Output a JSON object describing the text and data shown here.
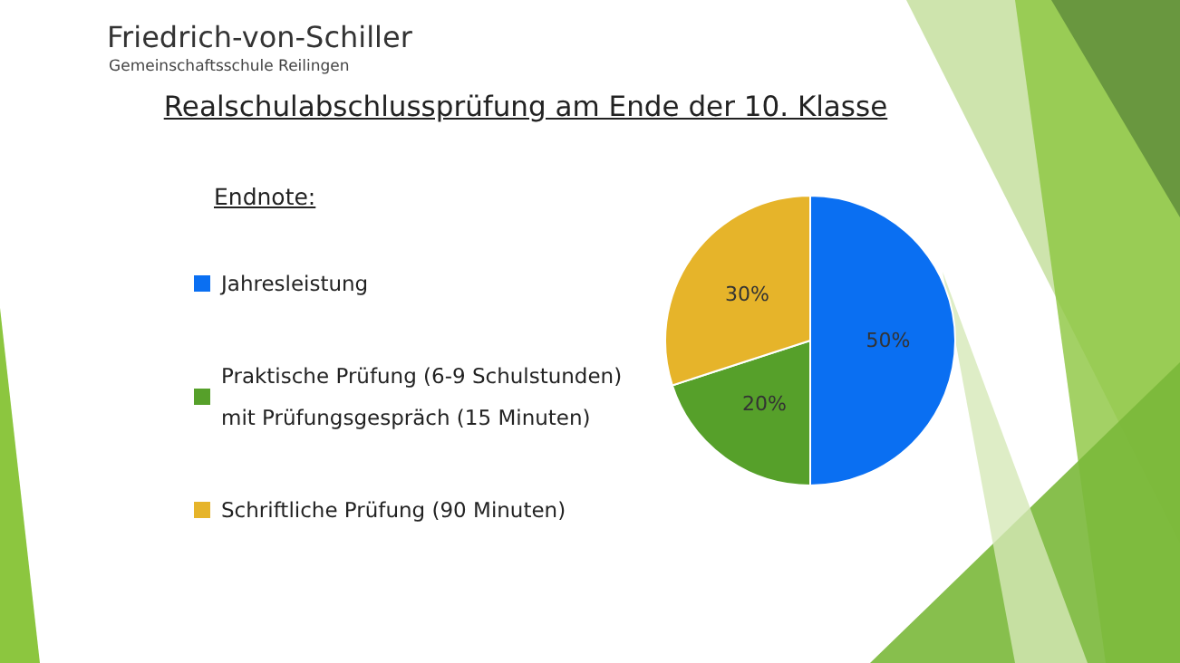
{
  "chart_data": {
    "type": "pie",
    "title": "Realschulabschlussprüfung am Ende der 10. Klasse",
    "annotations": [
      "Friedrich-von-Schiller",
      "Gemeinschaftsschule Reilingen"
    ],
    "legend_title": "Endnote:",
    "legend": "left",
    "categories": [
      "Jahresleistung",
      "Praktische Prüfung (6-9 Schulstunden)\nmit Prüfungsgespräch (15 Minuten)",
      "Schriftliche Prüfung (90 Minuten)"
    ],
    "values": [
      50,
      20,
      30
    ],
    "colors": [
      "#0a6ff2",
      "#56a02a",
      "#e6b42a"
    ],
    "value_labels": [
      "50%",
      "20%",
      "30%"
    ]
  }
}
